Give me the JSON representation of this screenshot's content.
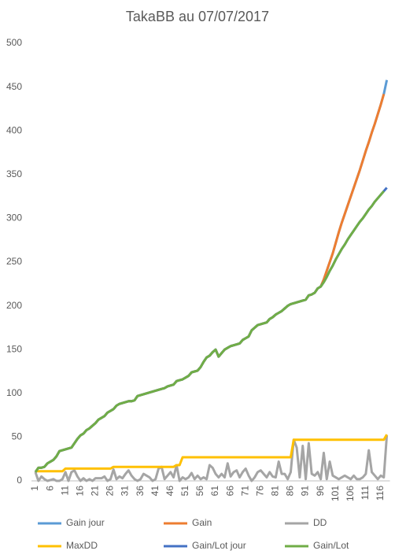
{
  "chart_data": {
    "type": "line",
    "title": "TakaBB au 07/07/2017",
    "categories": [
      "1",
      null,
      null,
      null,
      null,
      "6",
      null,
      null,
      null,
      null,
      "11",
      null,
      null,
      null,
      null,
      "16",
      null,
      null,
      null,
      null,
      "21",
      null,
      null,
      null,
      null,
      "26",
      null,
      null,
      null,
      null,
      "31",
      null,
      null,
      null,
      null,
      "36",
      null,
      null,
      null,
      null,
      "41",
      null,
      null,
      null,
      null,
      "46",
      null,
      null,
      null,
      null,
      "51",
      null,
      null,
      null,
      null,
      "56",
      null,
      null,
      null,
      null,
      "61",
      null,
      null,
      null,
      null,
      "66",
      null,
      null,
      null,
      null,
      "71",
      null,
      null,
      null,
      null,
      "76",
      null,
      null,
      null,
      null,
      "81",
      null,
      null,
      null,
      null,
      "86",
      null,
      null,
      null,
      null,
      "91",
      null,
      null,
      null,
      null,
      "96",
      null,
      null,
      null,
      null,
      "101",
      null,
      null,
      null,
      null,
      "106",
      null,
      null,
      null,
      null,
      "111",
      null,
      null,
      null,
      null,
      "116",
      null,
      null
    ],
    "ylim": [
      0,
      500
    ],
    "yticks": [
      0,
      50,
      100,
      150,
      200,
      250,
      300,
      350,
      400,
      450,
      500
    ],
    "grid": false,
    "legend": "bottom",
    "series": [
      {
        "name": "Gain jour",
        "color": "#5b9bd5",
        "values": [
          10,
          15,
          15,
          16,
          20,
          22,
          24,
          28,
          34,
          35,
          36,
          37,
          38,
          43,
          48,
          52,
          54,
          58,
          60,
          63,
          66,
          70,
          72,
          74,
          78,
          80,
          82,
          86,
          88,
          89,
          90,
          91,
          91,
          92,
          97,
          98,
          99,
          100,
          101,
          102,
          103,
          104,
          105,
          106,
          108,
          109,
          110,
          114,
          115,
          116,
          118,
          120,
          124,
          125,
          126,
          130,
          136,
          141,
          143,
          147,
          150,
          142,
          146,
          150,
          152,
          154,
          155,
          156,
          157,
          161,
          163,
          165,
          172,
          175,
          178,
          179,
          180,
          181,
          185,
          187,
          190,
          192,
          194,
          197,
          200,
          202,
          203,
          204,
          205,
          206,
          207,
          212,
          213,
          215,
          220,
          222,
          230,
          240,
          250,
          260,
          272,
          284,
          295,
          305,
          315,
          325,
          335,
          345,
          355,
          366,
          377,
          387,
          398,
          408,
          419,
          430,
          442,
          458
        ]
      },
      {
        "name": "Gain",
        "color": "#ed7d31",
        "values": [
          10,
          15,
          15,
          16,
          20,
          22,
          24,
          28,
          34,
          35,
          36,
          37,
          38,
          43,
          48,
          52,
          54,
          58,
          60,
          63,
          66,
          70,
          72,
          74,
          78,
          80,
          82,
          86,
          88,
          89,
          90,
          91,
          91,
          92,
          97,
          98,
          99,
          100,
          101,
          102,
          103,
          104,
          105,
          106,
          108,
          109,
          110,
          114,
          115,
          116,
          118,
          120,
          124,
          125,
          126,
          130,
          136,
          141,
          143,
          147,
          150,
          142,
          146,
          150,
          152,
          154,
          155,
          156,
          157,
          161,
          163,
          165,
          172,
          175,
          178,
          179,
          180,
          181,
          185,
          187,
          190,
          192,
          194,
          197,
          200,
          202,
          203,
          204,
          205,
          206,
          207,
          212,
          213,
          215,
          220,
          222,
          230,
          240,
          250,
          260,
          272,
          284,
          295,
          305,
          315,
          325,
          335,
          345,
          355,
          366,
          377,
          387,
          398,
          408,
          419,
          430,
          442,
          null
        ]
      },
      {
        "name": "DD",
        "color": "#a5a5a5",
        "values": [
          10,
          0,
          5,
          2,
          0,
          1,
          2,
          0,
          0,
          2,
          10,
          0,
          10,
          12,
          5,
          0,
          3,
          0,
          2,
          0,
          3,
          3,
          3,
          5,
          0,
          2,
          13,
          2,
          5,
          3,
          8,
          12,
          6,
          2,
          0,
          2,
          8,
          6,
          4,
          0,
          2,
          14,
          16,
          2,
          6,
          10,
          4,
          18,
          0,
          4,
          2,
          4,
          9,
          2,
          6,
          2,
          4,
          2,
          18,
          15,
          8,
          4,
          8,
          4,
          20,
          5,
          10,
          12,
          4,
          10,
          14,
          6,
          0,
          4,
          10,
          12,
          8,
          4,
          10,
          5,
          4,
          22,
          8,
          8,
          2,
          10,
          47,
          38,
          4,
          40,
          2,
          43,
          8,
          6,
          10,
          2,
          32,
          2,
          22,
          6,
          4,
          2,
          4,
          6,
          4,
          2,
          6,
          2,
          2,
          4,
          8,
          35,
          10,
          6,
          2,
          6,
          4,
          52
        ]
      },
      {
        "name": "MaxDD",
        "color": "#ffc000",
        "values": [
          11,
          11,
          11,
          11,
          11,
          11,
          11,
          11,
          11,
          11,
          14,
          14,
          14,
          14,
          14,
          14,
          14,
          14,
          14,
          14,
          14,
          14,
          14,
          14,
          14,
          14,
          16,
          16,
          16,
          16,
          16,
          16,
          16,
          16,
          16,
          16,
          16,
          16,
          16,
          16,
          16,
          16,
          16,
          16,
          16,
          16,
          16,
          18,
          18,
          27,
          27,
          27,
          27,
          27,
          27,
          27,
          27,
          27,
          27,
          27,
          27,
          27,
          27,
          27,
          27,
          27,
          27,
          27,
          27,
          27,
          27,
          27,
          27,
          27,
          27,
          27,
          27,
          27,
          27,
          27,
          27,
          27,
          27,
          27,
          27,
          27,
          47,
          47,
          47,
          47,
          47,
          47,
          47,
          47,
          47,
          47,
          47,
          47,
          47,
          47,
          47,
          47,
          47,
          47,
          47,
          47,
          47,
          47,
          47,
          47,
          47,
          47,
          47,
          47,
          47,
          47,
          47,
          53
        ]
      },
      {
        "name": "Gain/Lot jour",
        "color": "#4472c4",
        "values": [
          10,
          15,
          15,
          16,
          20,
          22,
          24,
          28,
          34,
          35,
          36,
          37,
          38,
          43,
          48,
          52,
          54,
          58,
          60,
          63,
          66,
          70,
          72,
          74,
          78,
          80,
          82,
          86,
          88,
          89,
          90,
          91,
          91,
          92,
          97,
          98,
          99,
          100,
          101,
          102,
          103,
          104,
          105,
          106,
          108,
          109,
          110,
          114,
          115,
          116,
          118,
          120,
          124,
          125,
          126,
          130,
          136,
          141,
          143,
          147,
          150,
          142,
          146,
          150,
          152,
          154,
          155,
          156,
          157,
          161,
          163,
          165,
          172,
          175,
          178,
          179,
          180,
          181,
          185,
          187,
          190,
          192,
          194,
          197,
          200,
          202,
          203,
          204,
          205,
          206,
          207,
          212,
          213,
          215,
          220,
          222,
          227,
          233,
          240,
          246,
          253,
          259,
          265,
          270,
          276,
          281,
          286,
          291,
          296,
          300,
          305,
          310,
          314,
          319,
          323,
          327,
          331,
          335
        ]
      },
      {
        "name": "Gain/Lot",
        "color": "#70ad47",
        "values": [
          10,
          15,
          15,
          16,
          20,
          22,
          24,
          28,
          34,
          35,
          36,
          37,
          38,
          43,
          48,
          52,
          54,
          58,
          60,
          63,
          66,
          70,
          72,
          74,
          78,
          80,
          82,
          86,
          88,
          89,
          90,
          91,
          91,
          92,
          97,
          98,
          99,
          100,
          101,
          102,
          103,
          104,
          105,
          106,
          108,
          109,
          110,
          114,
          115,
          116,
          118,
          120,
          124,
          125,
          126,
          130,
          136,
          141,
          143,
          147,
          150,
          142,
          146,
          150,
          152,
          154,
          155,
          156,
          157,
          161,
          163,
          165,
          172,
          175,
          178,
          179,
          180,
          181,
          185,
          187,
          190,
          192,
          194,
          197,
          200,
          202,
          203,
          204,
          205,
          206,
          207,
          212,
          213,
          215,
          220,
          222,
          227,
          233,
          240,
          246,
          253,
          259,
          265,
          270,
          276,
          281,
          286,
          291,
          296,
          300,
          305,
          310,
          314,
          319,
          323,
          327,
          331,
          null
        ]
      }
    ]
  }
}
